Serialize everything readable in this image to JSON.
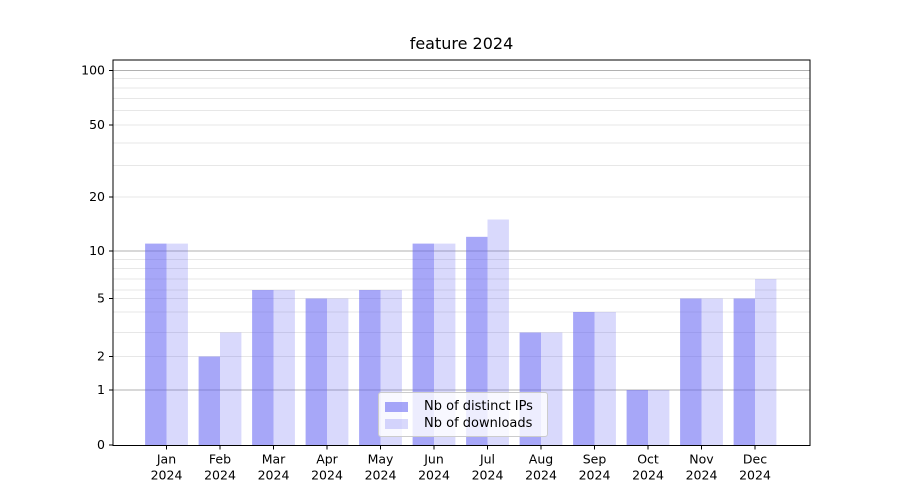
{
  "chart_data": {
    "type": "bar",
    "title": "feature 2024",
    "categories": [
      "Jan 2024",
      "Feb 2024",
      "Mar 2024",
      "Apr 2024",
      "May 2024",
      "Jun 2024",
      "Jul 2024",
      "Aug 2024",
      "Sep 2024",
      "Oct 2024",
      "Nov 2024",
      "Dec 2024"
    ],
    "x_tick_months": [
      "Jan",
      "Feb",
      "Mar",
      "Apr",
      "May",
      "Jun",
      "Jul",
      "Aug",
      "Sep",
      "Oct",
      "Nov",
      "Dec"
    ],
    "x_tick_year": "2024",
    "series": [
      {
        "name": "Nb of distinct IPs",
        "values": [
          11,
          2,
          6,
          5,
          6,
          11,
          12,
          3,
          4,
          1,
          5,
          5
        ]
      },
      {
        "name": "Nb of downloads",
        "values": [
          11,
          3,
          6,
          5,
          6,
          11,
          15,
          3,
          4,
          1,
          5,
          7
        ]
      }
    ],
    "yticks": [
      0,
      1,
      2,
      5,
      10,
      20,
      50,
      100
    ],
    "ylim": [
      0,
      115
    ],
    "yscale": "symlog",
    "xlabel": "",
    "ylabel": "",
    "grid": true,
    "legend_position": "lower center"
  },
  "legend": {
    "items": [
      {
        "label": "Nb of distinct IPs"
      },
      {
        "label": "Nb of downloads"
      }
    ]
  },
  "colors": {
    "bar_distinct_ips": "rgba(95,95,242,0.55)",
    "bar_downloads": "rgba(95,95,242,0.24)",
    "grid_minor": "#e7e7e7",
    "grid_major": "#b1b1b1",
    "axis": "#000000",
    "text": "#000000",
    "legend_border": "#cccccc"
  }
}
